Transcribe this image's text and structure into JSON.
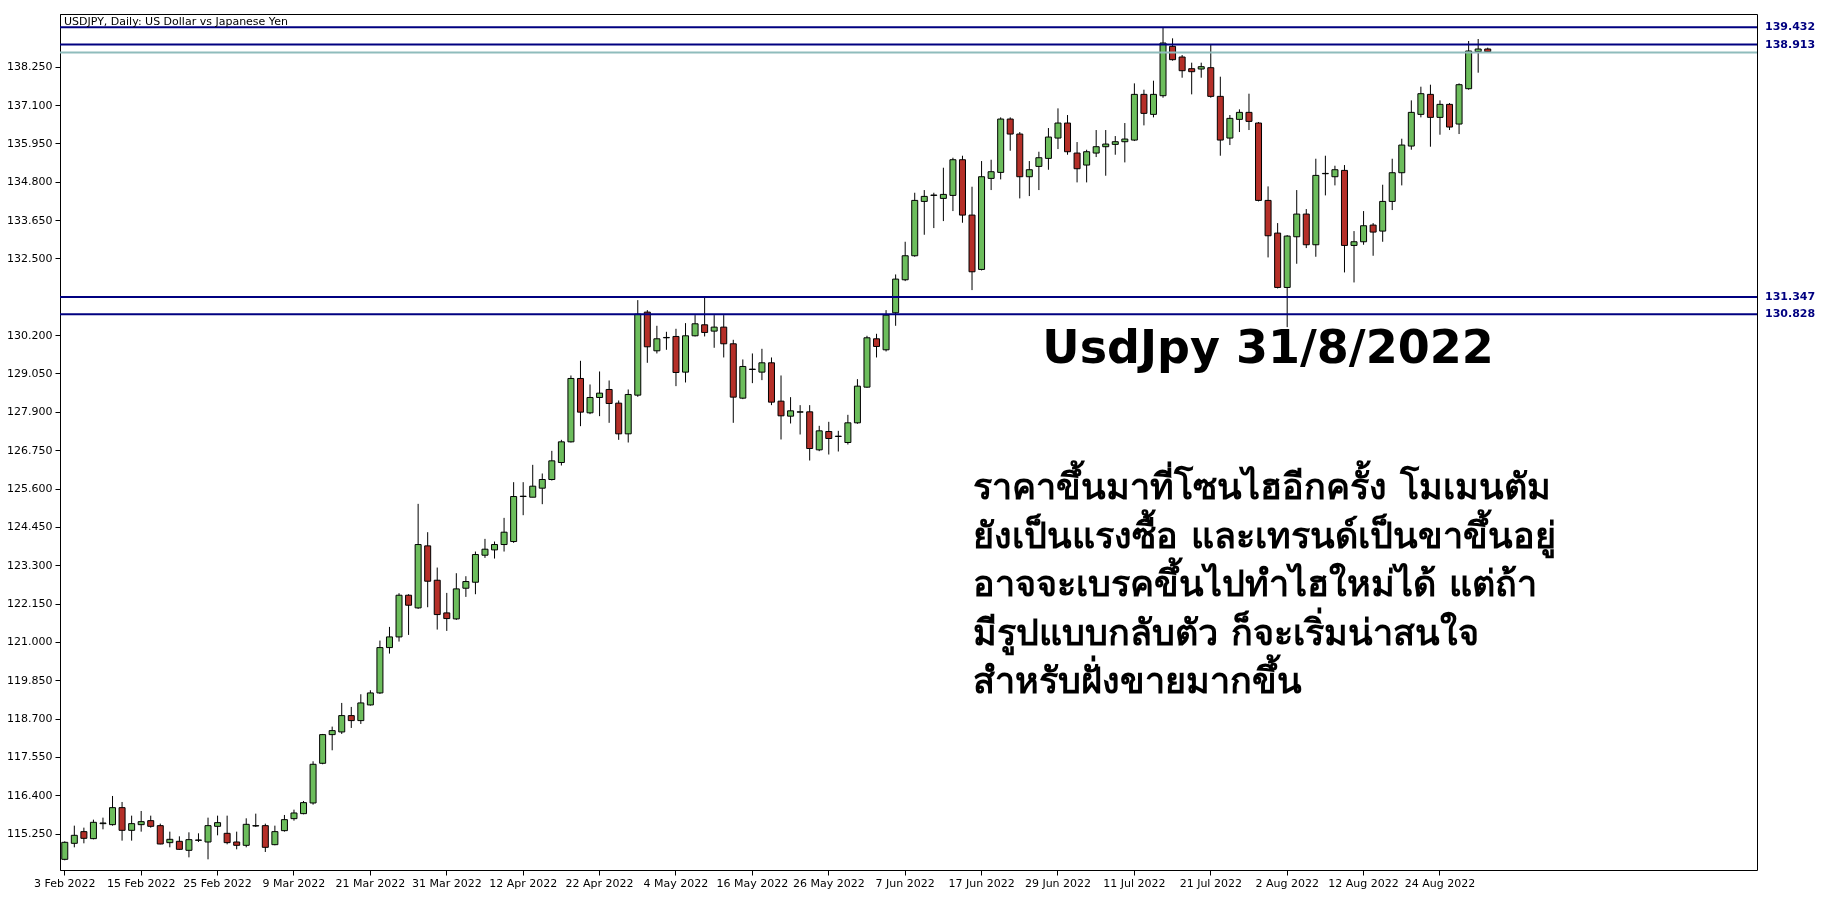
{
  "chart_data": {
    "type": "candlestick",
    "title": "USDJPY, Daily:  US Dollar vs Japanese Yen",
    "categories": [
      "3 Feb 2022",
      null,
      null,
      null,
      null,
      null,
      null,
      null,
      "15 Feb 2022",
      null,
      null,
      null,
      null,
      null,
      null,
      null,
      "25 Feb 2022",
      null,
      null,
      null,
      null,
      null,
      null,
      null,
      "9 Mar 2022",
      null,
      null,
      null,
      null,
      null,
      null,
      null,
      "21 Mar 2022",
      null,
      null,
      null,
      null,
      null,
      null,
      null,
      "31 Mar 2022",
      null,
      null,
      null,
      null,
      null,
      null,
      null,
      "12 Apr 2022",
      null,
      null,
      null,
      null,
      null,
      null,
      null,
      "22 Apr 2022",
      null,
      null,
      null,
      null,
      null,
      null,
      null,
      "4 May 2022",
      null,
      null,
      null,
      null,
      null,
      null,
      null,
      "16 May 2022",
      null,
      null,
      null,
      null,
      null,
      null,
      null,
      "26 May 2022",
      null,
      null,
      null,
      null,
      null,
      null,
      null,
      "7 Jun 2022",
      null,
      null,
      null,
      null,
      null,
      null,
      null,
      "17 Jun 2022",
      null,
      null,
      null,
      null,
      null,
      null,
      null,
      "29 Jun 2022",
      null,
      null,
      null,
      null,
      null,
      null,
      null,
      "11 Jul 2022",
      null,
      null,
      null,
      null,
      null,
      null,
      null,
      "21 Jul 2022",
      null,
      null,
      null,
      null,
      null,
      null,
      null,
      "2 Aug 2022",
      null,
      null,
      null,
      null,
      null,
      null,
      null,
      "12 Aug 2022",
      null,
      null,
      null,
      null,
      null,
      null,
      null,
      "24 Aug 2022",
      null,
      null,
      null,
      null,
      null
    ],
    "ohlc": [
      [
        114.48,
        115.02,
        114.45,
        114.99
      ],
      [
        114.96,
        115.49,
        114.84,
        115.2
      ],
      [
        115.31,
        115.43,
        114.96,
        115.11
      ],
      [
        115.1,
        115.67,
        115.08,
        115.59
      ],
      [
        115.55,
        115.73,
        115.38,
        115.57
      ],
      [
        115.52,
        116.38,
        115.49,
        116.03
      ],
      [
        116.03,
        116.2,
        115.04,
        115.35
      ],
      [
        115.35,
        115.79,
        115.04,
        115.55
      ],
      [
        115.52,
        115.93,
        115.31,
        115.61
      ],
      [
        115.64,
        115.79,
        115.43,
        115.47
      ],
      [
        115.49,
        115.55,
        114.93,
        114.94
      ],
      [
        114.98,
        115.31,
        114.84,
        115.08
      ],
      [
        115.02,
        115.17,
        114.76,
        114.78
      ],
      [
        114.75,
        115.29,
        114.54,
        115.07
      ],
      [
        115.05,
        115.26,
        115.0,
        115.06
      ],
      [
        115.0,
        115.73,
        114.48,
        115.49
      ],
      [
        115.47,
        115.79,
        115.2,
        115.58
      ],
      [
        115.26,
        115.79,
        114.93,
        114.98
      ],
      [
        115.0,
        115.31,
        114.78,
        114.9
      ],
      [
        114.9,
        115.71,
        114.84,
        115.53
      ],
      [
        115.48,
        115.85,
        115.45,
        115.49
      ],
      [
        115.49,
        115.55,
        114.7,
        114.84
      ],
      [
        114.92,
        115.49,
        114.9,
        115.31
      ],
      [
        115.34,
        115.81,
        115.31,
        115.67
      ],
      [
        115.7,
        115.97,
        115.64,
        115.87
      ],
      [
        115.85,
        116.23,
        115.83,
        116.18
      ],
      [
        116.17,
        117.42,
        116.12,
        117.33
      ],
      [
        117.36,
        118.24,
        117.33,
        118.22
      ],
      [
        118.22,
        118.46,
        117.75,
        118.34
      ],
      [
        118.3,
        119.17,
        118.24,
        118.79
      ],
      [
        118.79,
        119.05,
        118.42,
        118.64
      ],
      [
        118.64,
        119.43,
        118.54,
        119.17
      ],
      [
        119.11,
        119.55,
        119.09,
        119.47
      ],
      [
        119.47,
        121.04,
        119.44,
        120.83
      ],
      [
        120.83,
        121.45,
        120.65,
        121.15
      ],
      [
        121.15,
        122.46,
        121.01,
        122.4
      ],
      [
        122.4,
        122.43,
        121.21,
        122.1
      ],
      [
        122.02,
        125.14,
        121.99,
        123.92
      ],
      [
        123.88,
        124.29,
        122.04,
        122.82
      ],
      [
        122.85,
        123.23,
        121.37,
        121.82
      ],
      [
        121.87,
        122.47,
        121.33,
        121.7
      ],
      [
        121.69,
        123.06,
        121.66,
        122.59
      ],
      [
        122.61,
        122.97,
        122.35,
        122.81
      ],
      [
        122.79,
        123.71,
        122.43,
        123.62
      ],
      [
        123.6,
        124.09,
        123.52,
        123.78
      ],
      [
        123.76,
        124.01,
        123.5,
        123.92
      ],
      [
        123.92,
        124.72,
        123.71,
        124.29
      ],
      [
        124.01,
        125.79,
        123.97,
        125.36
      ],
      [
        125.36,
        125.79,
        124.8,
        125.37
      ],
      [
        125.34,
        126.31,
        125.34,
        125.67
      ],
      [
        125.61,
        126.05,
        125.13,
        125.87
      ],
      [
        125.87,
        126.73,
        125.84,
        126.43
      ],
      [
        126.38,
        127.06,
        126.29,
        127.0
      ],
      [
        127.0,
        128.99,
        126.98,
        128.9
      ],
      [
        128.9,
        129.43,
        127.47,
        127.89
      ],
      [
        127.87,
        128.72,
        127.83,
        128.33
      ],
      [
        128.33,
        129.11,
        127.77,
        128.46
      ],
      [
        128.57,
        128.84,
        127.57,
        128.15
      ],
      [
        128.16,
        128.24,
        127.06,
        127.24
      ],
      [
        127.24,
        128.57,
        126.98,
        128.42
      ],
      [
        128.4,
        131.25,
        128.35,
        130.83
      ],
      [
        130.89,
        130.95,
        129.37,
        129.85
      ],
      [
        129.73,
        130.48,
        129.65,
        130.09
      ],
      [
        130.12,
        130.3,
        129.76,
        130.13
      ],
      [
        130.16,
        130.39,
        128.67,
        129.08
      ],
      [
        129.09,
        130.56,
        128.78,
        130.18
      ],
      [
        130.18,
        130.8,
        130.16,
        130.54
      ],
      [
        130.51,
        131.37,
        130.16,
        130.28
      ],
      [
        130.32,
        130.8,
        129.82,
        130.44
      ],
      [
        130.44,
        130.8,
        129.53,
        129.94
      ],
      [
        129.94,
        130.06,
        127.57,
        128.34
      ],
      [
        128.31,
        129.47,
        128.28,
        129.26
      ],
      [
        129.17,
        129.65,
        128.76,
        129.18
      ],
      [
        129.09,
        129.79,
        128.85,
        129.37
      ],
      [
        129.37,
        129.53,
        128.1,
        128.19
      ],
      [
        128.22,
        128.99,
        127.07,
        127.78
      ],
      [
        127.77,
        128.34,
        127.55,
        127.93
      ],
      [
        127.89,
        128.1,
        127.22,
        127.9
      ],
      [
        127.9,
        128.1,
        126.44,
        126.8
      ],
      [
        126.76,
        127.48,
        126.72,
        127.33
      ],
      [
        127.31,
        127.6,
        126.62,
        127.1
      ],
      [
        127.16,
        127.33,
        126.71,
        127.17
      ],
      [
        126.98,
        127.81,
        126.92,
        127.57
      ],
      [
        127.57,
        128.88,
        127.54,
        128.67
      ],
      [
        128.64,
        130.18,
        128.62,
        130.12
      ],
      [
        130.09,
        130.24,
        129.53,
        129.86
      ],
      [
        129.76,
        130.95,
        129.71,
        130.8
      ],
      [
        130.87,
        132.02,
        130.48,
        131.88
      ],
      [
        131.86,
        133.0,
        131.82,
        132.58
      ],
      [
        132.58,
        134.47,
        132.55,
        134.24
      ],
      [
        134.21,
        134.55,
        133.21,
        134.36
      ],
      [
        134.39,
        134.47,
        133.41,
        134.4
      ],
      [
        134.3,
        135.22,
        133.62,
        134.42
      ],
      [
        134.39,
        135.52,
        133.92,
        135.46
      ],
      [
        135.46,
        135.58,
        133.57,
        133.8
      ],
      [
        133.8,
        134.65,
        131.55,
        132.1
      ],
      [
        132.17,
        135.42,
        132.14,
        134.95
      ],
      [
        134.9,
        135.46,
        134.55,
        135.1
      ],
      [
        135.08,
        136.73,
        134.87,
        136.68
      ],
      [
        136.68,
        136.73,
        135.73,
        136.23
      ],
      [
        136.23,
        136.29,
        134.3,
        134.95
      ],
      [
        134.95,
        135.42,
        134.37,
        135.16
      ],
      [
        135.26,
        135.7,
        134.55,
        135.52
      ],
      [
        135.5,
        136.41,
        135.16,
        136.14
      ],
      [
        136.11,
        137.0,
        135.78,
        136.56
      ],
      [
        136.56,
        136.8,
        135.61,
        135.7
      ],
      [
        135.66,
        135.99,
        134.78,
        135.19
      ],
      [
        135.3,
        135.76,
        134.78,
        135.7
      ],
      [
        135.66,
        136.35,
        135.54,
        135.85
      ],
      [
        135.85,
        136.35,
        134.98,
        135.93
      ],
      [
        135.92,
        136.17,
        135.61,
        136.0
      ],
      [
        136.0,
        136.56,
        135.38,
        136.08
      ],
      [
        136.05,
        137.75,
        136.02,
        137.42
      ],
      [
        137.42,
        137.56,
        136.49,
        136.85
      ],
      [
        136.82,
        137.83,
        136.73,
        137.42
      ],
      [
        137.38,
        139.43,
        137.32,
        138.96
      ],
      [
        138.86,
        139.1,
        138.43,
        138.46
      ],
      [
        138.54,
        138.6,
        137.92,
        138.13
      ],
      [
        138.19,
        138.37,
        137.42,
        138.1
      ],
      [
        138.18,
        138.37,
        137.92,
        138.25
      ],
      [
        138.22,
        138.9,
        137.32,
        137.36
      ],
      [
        137.36,
        137.95,
        135.58,
        136.05
      ],
      [
        136.11,
        136.8,
        135.9,
        136.7
      ],
      [
        136.67,
        136.97,
        136.29,
        136.88
      ],
      [
        136.88,
        137.44,
        136.35,
        136.61
      ],
      [
        136.56,
        136.59,
        134.21,
        134.24
      ],
      [
        134.24,
        134.66,
        132.53,
        133.18
      ],
      [
        133.26,
        133.56,
        131.6,
        131.63
      ],
      [
        131.63,
        133.2,
        130.44,
        133.17
      ],
      [
        133.15,
        134.55,
        132.34,
        133.83
      ],
      [
        133.83,
        133.98,
        132.81,
        132.91
      ],
      [
        132.91,
        135.49,
        132.55,
        134.99
      ],
      [
        135.04,
        135.58,
        134.39,
        135.05
      ],
      [
        134.95,
        135.28,
        134.69,
        135.16
      ],
      [
        135.14,
        135.3,
        132.08,
        132.89
      ],
      [
        132.89,
        133.32,
        131.78,
        133.0
      ],
      [
        133.0,
        133.92,
        132.91,
        133.48
      ],
      [
        133.5,
        133.56,
        132.58,
        133.29
      ],
      [
        133.32,
        134.71,
        133.0,
        134.21
      ],
      [
        134.21,
        135.49,
        133.95,
        135.07
      ],
      [
        135.07,
        136.09,
        134.69,
        135.9
      ],
      [
        135.87,
        137.24,
        135.76,
        136.88
      ],
      [
        136.82,
        137.65,
        136.73,
        137.44
      ],
      [
        137.42,
        137.71,
        135.85,
        136.73
      ],
      [
        136.73,
        137.24,
        136.21,
        137.12
      ],
      [
        137.12,
        137.16,
        136.35,
        136.44
      ],
      [
        136.53,
        137.75,
        136.23,
        137.71
      ],
      [
        137.59,
        139.02,
        137.56,
        138.72
      ],
      [
        138.7,
        139.08,
        138.07,
        138.78
      ],
      [
        138.78,
        138.82,
        138.66,
        138.7
      ]
    ],
    "colors": [
      "#6cbd5c",
      "#6cbd5c",
      "#b52f28",
      "#6cbd5c",
      "#6cbd5c",
      "#6cbd5c",
      "#b52f28",
      "#6cbd5c",
      "#6cbd5c",
      "#b52f28",
      "#b52f28",
      "#6cbd5c",
      "#b52f28",
      "#6cbd5c",
      "#6cbd5c",
      "#6cbd5c",
      "#6cbd5c",
      "#b52f28",
      "#b52f28",
      "#6cbd5c",
      "#6cbd5c",
      "#b52f28",
      "#6cbd5c",
      "#6cbd5c",
      "#6cbd5c",
      "#6cbd5c",
      "#6cbd5c",
      "#6cbd5c",
      "#6cbd5c",
      "#6cbd5c",
      "#b52f28",
      "#6cbd5c",
      "#6cbd5c",
      "#6cbd5c",
      "#6cbd5c",
      "#6cbd5c",
      "#b52f28",
      "#6cbd5c",
      "#b52f28",
      "#b52f28",
      "#b52f28",
      "#6cbd5c",
      "#6cbd5c",
      "#6cbd5c",
      "#6cbd5c",
      "#6cbd5c",
      "#6cbd5c",
      "#6cbd5c",
      "#6cbd5c",
      "#6cbd5c",
      "#6cbd5c",
      "#6cbd5c",
      "#6cbd5c",
      "#6cbd5c",
      "#b52f28",
      "#6cbd5c",
      "#6cbd5c",
      "#b52f28",
      "#b52f28",
      "#6cbd5c",
      "#6cbd5c",
      "#b52f28",
      "#6cbd5c",
      "#6cbd5c",
      "#b52f28",
      "#6cbd5c",
      "#6cbd5c",
      "#b52f28",
      "#6cbd5c",
      "#b52f28",
      "#b52f28",
      "#6cbd5c",
      "#6cbd5c",
      "#6cbd5c",
      "#b52f28",
      "#b52f28",
      "#6cbd5c",
      "#6cbd5c",
      "#b52f28",
      "#6cbd5c",
      "#b52f28",
      "#6cbd5c",
      "#6cbd5c",
      "#6cbd5c",
      "#6cbd5c",
      "#b52f28",
      "#6cbd5c",
      "#6cbd5c",
      "#6cbd5c",
      "#6cbd5c",
      "#6cbd5c",
      "#6cbd5c",
      "#6cbd5c",
      "#6cbd5c",
      "#b52f28",
      "#b52f28",
      "#6cbd5c",
      "#6cbd5c",
      "#6cbd5c",
      "#b52f28",
      "#b52f28",
      "#6cbd5c",
      "#6cbd5c",
      "#6cbd5c",
      "#6cbd5c",
      "#b52f28",
      "#b52f28",
      "#6cbd5c",
      "#6cbd5c",
      "#6cbd5c",
      "#6cbd5c",
      "#6cbd5c",
      "#6cbd5c",
      "#b52f28",
      "#6cbd5c",
      "#6cbd5c",
      "#b52f28",
      "#b52f28",
      "#b52f28",
      "#6cbd5c",
      "#b52f28",
      "#b52f28",
      "#6cbd5c",
      "#6cbd5c",
      "#b52f28",
      "#b52f28",
      "#b52f28",
      "#b52f28",
      "#6cbd5c",
      "#6cbd5c",
      "#b52f28",
      "#6cbd5c",
      "#6cbd5c",
      "#6cbd5c",
      "#b52f28",
      "#6cbd5c",
      "#6cbd5c",
      "#b52f28",
      "#6cbd5c",
      "#6cbd5c",
      "#6cbd5c",
      "#6cbd5c",
      "#6cbd5c",
      "#b52f28",
      "#6cbd5c",
      "#b52f28",
      "#6cbd5c",
      "#6cbd5c",
      "#6cbd5c",
      "#b52f28"
    ],
    "ylim": [
      114.16,
      139.83
    ],
    "yticks": [
      {
        "value": 115.25,
        "label": "115.250"
      },
      {
        "value": 116.4,
        "label": "116.400"
      },
      {
        "value": 117.55,
        "label": "117.550"
      },
      {
        "value": 118.7,
        "label": "118.700"
      },
      {
        "value": 119.85,
        "label": "119.850"
      },
      {
        "value": 121,
        "label": "121.000"
      },
      {
        "value": 122.15,
        "label": "122.150"
      },
      {
        "value": 123.3,
        "label": "123.300"
      },
      {
        "value": 124.45,
        "label": "124.450"
      },
      {
        "value": 125.6,
        "label": "125.600"
      },
      {
        "value": 126.75,
        "label": "126.750"
      },
      {
        "value": 127.9,
        "label": "127.900"
      },
      {
        "value": 129.05,
        "label": "129.050"
      },
      {
        "value": 130.2,
        "label": "130.200"
      },
      {
        "value": 132.5,
        "label": "132.500"
      },
      {
        "value": 133.65,
        "label": "133.650"
      },
      {
        "value": 134.8,
        "label": "134.800"
      },
      {
        "value": 135.95,
        "label": "135.950"
      },
      {
        "value": 137.1,
        "label": "137.100"
      },
      {
        "value": 138.25,
        "label": "138.250"
      }
    ],
    "ref_lines": [
      {
        "axis": "y",
        "value": 139.432,
        "label": "139.432",
        "color": "#000080"
      },
      {
        "axis": "y",
        "value": 138.913,
        "label": "138.913",
        "color": "#000080"
      },
      {
        "axis": "y",
        "value": 138.672,
        "label": null,
        "color": "#8fbcbc"
      },
      {
        "axis": "y",
        "value": 131.347,
        "label": "131.347",
        "color": "#000080"
      },
      {
        "axis": "y",
        "value": 130.828,
        "label": "130.828",
        "color": "#000080"
      }
    ],
    "annotations": [
      "UsdJpy 31/8/2022",
      "ราคาขึ้นมาที่โซนไฮอีกครั้ง  โมเมนตัม\nยังเป็นแรงซื้อ  และเทรนด์เป็นขาขึ้นอยู่\nอาจจะเบรคขึ้นไปทำไฮใหม่ได้  แต่ถ้า\nมีรูปแบบกลับตัว  ก็จะเริ่มน่าสนใจ\nสำหรับฝั่งขายมากขึ้น"
    ],
    "grid": false
  }
}
